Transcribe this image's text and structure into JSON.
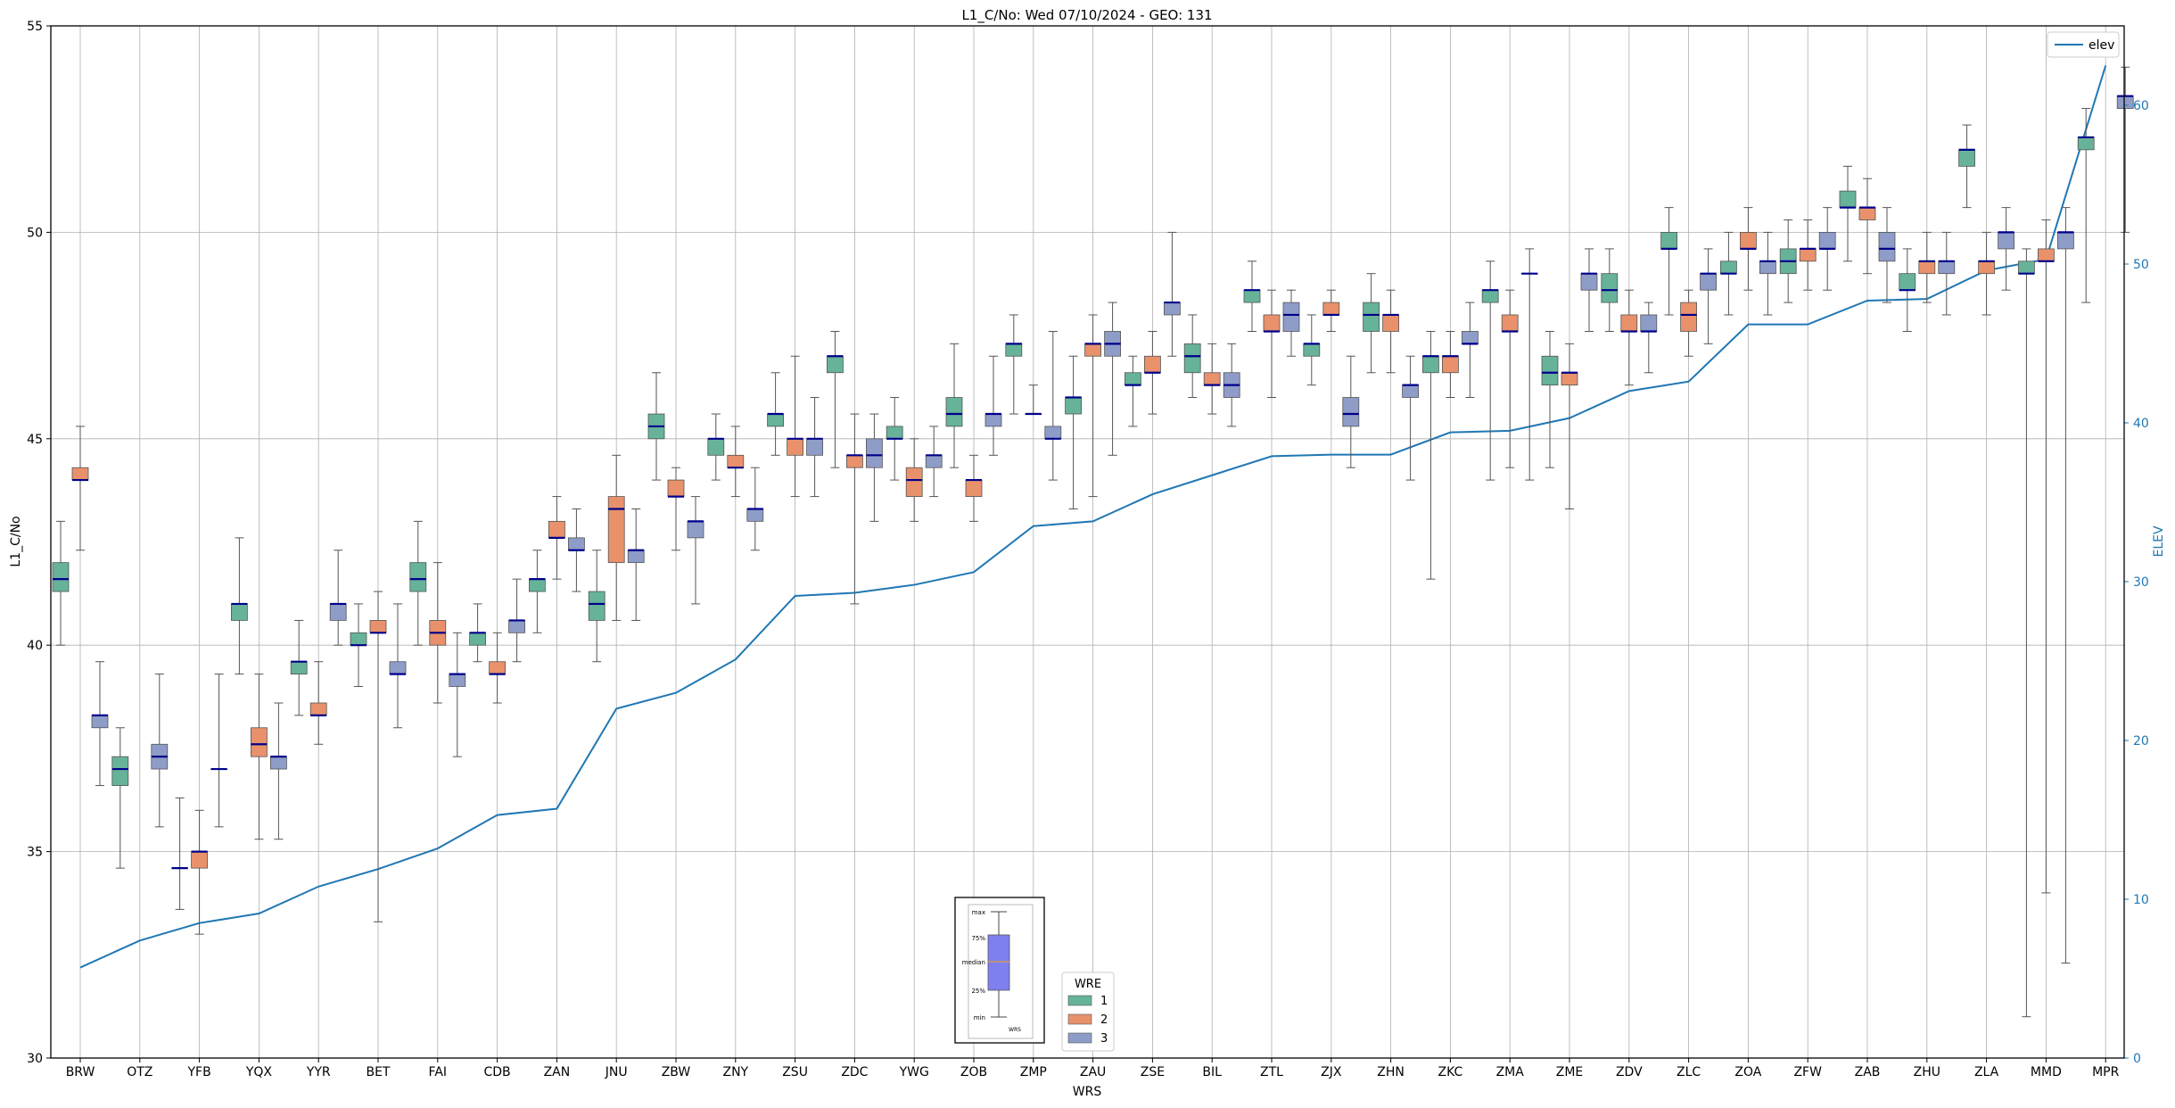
{
  "chart_data": {
    "type": "box",
    "title": "L1_C/No: Wed 07/10/2024 - GEO: 131",
    "xlabel": "WRS",
    "ylabel": "L1_C/No",
    "y2label": "ELEV",
    "ylim": [
      30,
      55
    ],
    "y2lim": [
      0,
      65
    ],
    "yticks": [
      30,
      35,
      40,
      45,
      50,
      55
    ],
    "y2ticks": [
      0,
      10,
      20,
      30,
      40,
      50,
      60
    ],
    "grid": true,
    "categories": [
      "BRW",
      "OTZ",
      "YFB",
      "YQX",
      "YYR",
      "BET",
      "FAI",
      "CDB",
      "ZAN",
      "JNU",
      "ZBW",
      "ZNY",
      "ZSU",
      "ZDC",
      "YWG",
      "ZOB",
      "ZMP",
      "ZAU",
      "ZSE",
      "BIL",
      "ZTL",
      "ZJX",
      "ZHN",
      "ZKC",
      "ZMA",
      "ZME",
      "ZDV",
      "ZLC",
      "ZOA",
      "ZFW",
      "ZAB",
      "ZHU",
      "ZLA",
      "MMD",
      "MPR"
    ],
    "wre_colors": {
      "1": "#66b39a",
      "2": "#e8916b",
      "3": "#8e9cc8"
    },
    "elev_color": "#1f77b4",
    "boxes": [
      {
        "wrs": "BRW",
        "wre": "1",
        "min": 40.0,
        "q1": 41.3,
        "median": 41.6,
        "q3": 42.0,
        "max": 43.0
      },
      {
        "wrs": "BRW",
        "wre": "2",
        "min": 42.3,
        "q1": 44.0,
        "median": 44.0,
        "q3": 44.3,
        "max": 45.3
      },
      {
        "wrs": "BRW",
        "wre": "3",
        "min": 36.6,
        "q1": 38.0,
        "median": 38.3,
        "q3": 38.3,
        "max": 39.6
      },
      {
        "wrs": "OTZ",
        "wre": "1",
        "min": 34.6,
        "q1": 36.6,
        "median": 37.0,
        "q3": 37.3,
        "max": 38.0
      },
      {
        "wrs": "OTZ",
        "wre": "3",
        "min": 35.6,
        "q1": 37.0,
        "median": 37.3,
        "q3": 37.6,
        "max": 39.3
      },
      {
        "wrs": "YFB",
        "wre": "1",
        "min": 33.6,
        "q1": 34.6,
        "median": 34.6,
        "q3": 34.6,
        "max": 36.3
      },
      {
        "wrs": "YFB",
        "wre": "2",
        "min": 33.0,
        "q1": 34.6,
        "median": 35.0,
        "q3": 35.0,
        "max": 36.0
      },
      {
        "wrs": "YFB",
        "wre": "3",
        "min": 35.6,
        "q1": 37.0,
        "median": 37.0,
        "q3": 37.0,
        "max": 39.3
      },
      {
        "wrs": "YQX",
        "wre": "1",
        "min": 39.3,
        "q1": 40.6,
        "median": 41.0,
        "q3": 41.0,
        "max": 42.6
      },
      {
        "wrs": "YQX",
        "wre": "2",
        "min": 35.3,
        "q1": 37.3,
        "median": 37.6,
        "q3": 38.0,
        "max": 39.3
      },
      {
        "wrs": "YQX",
        "wre": "3",
        "min": 35.3,
        "q1": 37.0,
        "median": 37.3,
        "q3": 37.3,
        "max": 38.6
      },
      {
        "wrs": "YYR",
        "wre": "1",
        "min": 38.3,
        "q1": 39.3,
        "median": 39.6,
        "q3": 39.6,
        "max": 40.6
      },
      {
        "wrs": "YYR",
        "wre": "2",
        "min": 37.6,
        "q1": 38.3,
        "median": 38.3,
        "q3": 38.6,
        "max": 39.6
      },
      {
        "wrs": "YYR",
        "wre": "3",
        "min": 40.0,
        "q1": 40.6,
        "median": 41.0,
        "q3": 41.0,
        "max": 42.3
      },
      {
        "wrs": "BET",
        "wre": "1",
        "min": 39.0,
        "q1": 40.0,
        "median": 40.0,
        "q3": 40.3,
        "max": 41.0
      },
      {
        "wrs": "BET",
        "wre": "2",
        "min": 33.3,
        "q1": 40.3,
        "median": 40.3,
        "q3": 40.6,
        "max": 41.3
      },
      {
        "wrs": "BET",
        "wre": "3",
        "min": 38.0,
        "q1": 39.3,
        "median": 39.3,
        "q3": 39.6,
        "max": 41.0
      },
      {
        "wrs": "FAI",
        "wre": "1",
        "min": 40.0,
        "q1": 41.3,
        "median": 41.6,
        "q3": 42.0,
        "max": 43.0
      },
      {
        "wrs": "FAI",
        "wre": "2",
        "min": 38.6,
        "q1": 40.0,
        "median": 40.3,
        "q3": 40.6,
        "max": 42.0
      },
      {
        "wrs": "FAI",
        "wre": "3",
        "min": 37.3,
        "q1": 39.0,
        "median": 39.3,
        "q3": 39.3,
        "max": 40.3
      },
      {
        "wrs": "CDB",
        "wre": "1",
        "min": 39.6,
        "q1": 40.0,
        "median": 40.3,
        "q3": 40.3,
        "max": 41.0
      },
      {
        "wrs": "CDB",
        "wre": "2",
        "min": 38.6,
        "q1": 39.3,
        "median": 39.3,
        "q3": 39.6,
        "max": 40.3
      },
      {
        "wrs": "CDB",
        "wre": "3",
        "min": 39.6,
        "q1": 40.3,
        "median": 40.6,
        "q3": 40.6,
        "max": 41.6
      },
      {
        "wrs": "ZAN",
        "wre": "1",
        "min": 40.3,
        "q1": 41.3,
        "median": 41.6,
        "q3": 41.6,
        "max": 42.3
      },
      {
        "wrs": "ZAN",
        "wre": "2",
        "min": 41.6,
        "q1": 42.6,
        "median": 42.6,
        "q3": 43.0,
        "max": 43.6
      },
      {
        "wrs": "ZAN",
        "wre": "3",
        "min": 41.3,
        "q1": 42.3,
        "median": 42.3,
        "q3": 42.6,
        "max": 43.3
      },
      {
        "wrs": "JNU",
        "wre": "1",
        "min": 39.6,
        "q1": 40.6,
        "median": 41.0,
        "q3": 41.3,
        "max": 42.3
      },
      {
        "wrs": "JNU",
        "wre": "2",
        "min": 40.6,
        "q1": 42.0,
        "median": 43.3,
        "q3": 43.6,
        "max": 44.6
      },
      {
        "wrs": "JNU",
        "wre": "3",
        "min": 40.6,
        "q1": 42.0,
        "median": 42.3,
        "q3": 42.3,
        "max": 43.3
      },
      {
        "wrs": "ZBW",
        "wre": "1",
        "min": 44.0,
        "q1": 45.0,
        "median": 45.3,
        "q3": 45.6,
        "max": 46.6
      },
      {
        "wrs": "ZBW",
        "wre": "2",
        "min": 42.3,
        "q1": 43.6,
        "median": 43.6,
        "q3": 44.0,
        "max": 44.3
      },
      {
        "wrs": "ZBW",
        "wre": "3",
        "min": 41.0,
        "q1": 42.6,
        "median": 43.0,
        "q3": 43.0,
        "max": 43.6
      },
      {
        "wrs": "ZNY",
        "wre": "1",
        "min": 44.0,
        "q1": 44.6,
        "median": 45.0,
        "q3": 45.0,
        "max": 45.6
      },
      {
        "wrs": "ZNY",
        "wre": "2",
        "min": 43.6,
        "q1": 44.3,
        "median": 44.3,
        "q3": 44.6,
        "max": 45.3
      },
      {
        "wrs": "ZNY",
        "wre": "3",
        "min": 42.3,
        "q1": 43.0,
        "median": 43.3,
        "q3": 43.3,
        "max": 44.3
      },
      {
        "wrs": "ZSU",
        "wre": "1",
        "min": 44.6,
        "q1": 45.3,
        "median": 45.6,
        "q3": 45.6,
        "max": 46.6
      },
      {
        "wrs": "ZSU",
        "wre": "2",
        "min": 43.6,
        "q1": 44.6,
        "median": 45.0,
        "q3": 45.0,
        "max": 47.0
      },
      {
        "wrs": "ZSU",
        "wre": "3",
        "min": 43.6,
        "q1": 44.6,
        "median": 45.0,
        "q3": 45.0,
        "max": 46.0
      },
      {
        "wrs": "ZDC",
        "wre": "1",
        "min": 44.3,
        "q1": 46.6,
        "median": 47.0,
        "q3": 47.0,
        "max": 47.6
      },
      {
        "wrs": "ZDC",
        "wre": "2",
        "min": 41.0,
        "q1": 44.3,
        "median": 44.6,
        "q3": 44.6,
        "max": 45.6
      },
      {
        "wrs": "ZDC",
        "wre": "3",
        "min": 43.0,
        "q1": 44.3,
        "median": 44.6,
        "q3": 45.0,
        "max": 45.6
      },
      {
        "wrs": "YWG",
        "wre": "1",
        "min": 44.0,
        "q1": 45.0,
        "median": 45.0,
        "q3": 45.3,
        "max": 46.0
      },
      {
        "wrs": "YWG",
        "wre": "2",
        "min": 43.0,
        "q1": 43.6,
        "median": 44.0,
        "q3": 44.3,
        "max": 45.0
      },
      {
        "wrs": "YWG",
        "wre": "3",
        "min": 43.6,
        "q1": 44.3,
        "median": 44.6,
        "q3": 44.6,
        "max": 45.3
      },
      {
        "wrs": "ZOB",
        "wre": "1",
        "min": 44.3,
        "q1": 45.3,
        "median": 45.6,
        "q3": 46.0,
        "max": 47.3
      },
      {
        "wrs": "ZOB",
        "wre": "2",
        "min": 43.0,
        "q1": 43.6,
        "median": 44.0,
        "q3": 44.0,
        "max": 44.6
      },
      {
        "wrs": "ZOB",
        "wre": "3",
        "min": 44.6,
        "q1": 45.3,
        "median": 45.6,
        "q3": 45.6,
        "max": 47.0
      },
      {
        "wrs": "ZMP",
        "wre": "1",
        "min": 45.6,
        "q1": 47.0,
        "median": 47.3,
        "q3": 47.3,
        "max": 48.0
      },
      {
        "wrs": "ZMP",
        "wre": "2",
        "min": 45.6,
        "q1": 45.6,
        "median": 45.6,
        "q3": 45.6,
        "max": 46.3
      },
      {
        "wrs": "ZMP",
        "wre": "3",
        "min": 44.0,
        "q1": 45.0,
        "median": 45.0,
        "q3": 45.3,
        "max": 47.6
      },
      {
        "wrs": "ZAU",
        "wre": "1",
        "min": 43.3,
        "q1": 45.6,
        "median": 46.0,
        "q3": 46.0,
        "max": 47.0
      },
      {
        "wrs": "ZAU",
        "wre": "2",
        "min": 43.6,
        "q1": 47.0,
        "median": 47.3,
        "q3": 47.3,
        "max": 48.0
      },
      {
        "wrs": "ZAU",
        "wre": "3",
        "min": 44.6,
        "q1": 47.0,
        "median": 47.3,
        "q3": 47.6,
        "max": 48.3
      },
      {
        "wrs": "ZSE",
        "wre": "1",
        "min": 45.3,
        "q1": 46.3,
        "median": 46.3,
        "q3": 46.6,
        "max": 47.0
      },
      {
        "wrs": "ZSE",
        "wre": "2",
        "min": 45.6,
        "q1": 46.6,
        "median": 46.6,
        "q3": 47.0,
        "max": 47.6
      },
      {
        "wrs": "ZSE",
        "wre": "3",
        "min": 47.0,
        "q1": 48.0,
        "median": 48.3,
        "q3": 48.3,
        "max": 50.0
      },
      {
        "wrs": "BIL",
        "wre": "1",
        "min": 46.0,
        "q1": 46.6,
        "median": 47.0,
        "q3": 47.3,
        "max": 48.0
      },
      {
        "wrs": "BIL",
        "wre": "2",
        "min": 45.6,
        "q1": 46.3,
        "median": 46.3,
        "q3": 46.6,
        "max": 47.3
      },
      {
        "wrs": "BIL",
        "wre": "3",
        "min": 45.3,
        "q1": 46.0,
        "median": 46.3,
        "q3": 46.6,
        "max": 47.3
      },
      {
        "wrs": "ZTL",
        "wre": "1",
        "min": 47.6,
        "q1": 48.3,
        "median": 48.6,
        "q3": 48.6,
        "max": 49.3
      },
      {
        "wrs": "ZTL",
        "wre": "2",
        "min": 46.0,
        "q1": 47.6,
        "median": 47.6,
        "q3": 48.0,
        "max": 48.6
      },
      {
        "wrs": "ZTL",
        "wre": "3",
        "min": 47.0,
        "q1": 47.6,
        "median": 48.0,
        "q3": 48.3,
        "max": 48.6
      },
      {
        "wrs": "ZJX",
        "wre": "1",
        "min": 46.3,
        "q1": 47.0,
        "median": 47.3,
        "q3": 47.3,
        "max": 48.0
      },
      {
        "wrs": "ZJX",
        "wre": "2",
        "min": 47.6,
        "q1": 48.0,
        "median": 48.0,
        "q3": 48.3,
        "max": 48.6
      },
      {
        "wrs": "ZJX",
        "wre": "3",
        "min": 44.3,
        "q1": 45.3,
        "median": 45.6,
        "q3": 46.0,
        "max": 47.0
      },
      {
        "wrs": "ZHN",
        "wre": "1",
        "min": 46.6,
        "q1": 47.6,
        "median": 48.0,
        "q3": 48.3,
        "max": 49.0
      },
      {
        "wrs": "ZHN",
        "wre": "2",
        "min": 46.6,
        "q1": 47.6,
        "median": 48.0,
        "q3": 48.0,
        "max": 48.6
      },
      {
        "wrs": "ZHN",
        "wre": "3",
        "min": 44.0,
        "q1": 46.0,
        "median": 46.3,
        "q3": 46.3,
        "max": 47.0
      },
      {
        "wrs": "ZKC",
        "wre": "1",
        "min": 41.6,
        "q1": 46.6,
        "median": 47.0,
        "q3": 47.0,
        "max": 47.6
      },
      {
        "wrs": "ZKC",
        "wre": "2",
        "min": 46.0,
        "q1": 46.6,
        "median": 47.0,
        "q3": 47.0,
        "max": 47.6
      },
      {
        "wrs": "ZKC",
        "wre": "3",
        "min": 46.0,
        "q1": 47.3,
        "median": 47.3,
        "q3": 47.6,
        "max": 48.3
      },
      {
        "wrs": "ZMA",
        "wre": "1",
        "min": 44.0,
        "q1": 48.3,
        "median": 48.6,
        "q3": 48.6,
        "max": 49.3
      },
      {
        "wrs": "ZMA",
        "wre": "2",
        "min": 44.3,
        "q1": 47.6,
        "median": 47.6,
        "q3": 48.0,
        "max": 48.6
      },
      {
        "wrs": "ZMA",
        "wre": "3",
        "min": 44.0,
        "q1": 49.0,
        "median": 49.0,
        "q3": 49.0,
        "max": 49.6
      },
      {
        "wrs": "ZME",
        "wre": "1",
        "min": 44.3,
        "q1": 46.3,
        "median": 46.6,
        "q3": 47.0,
        "max": 47.6
      },
      {
        "wrs": "ZME",
        "wre": "2",
        "min": 43.3,
        "q1": 46.3,
        "median": 46.6,
        "q3": 46.6,
        "max": 47.3
      },
      {
        "wrs": "ZME",
        "wre": "3",
        "min": 47.6,
        "q1": 48.6,
        "median": 49.0,
        "q3": 49.0,
        "max": 49.6
      },
      {
        "wrs": "ZDV",
        "wre": "1",
        "min": 47.6,
        "q1": 48.3,
        "median": 48.6,
        "q3": 49.0,
        "max": 49.6
      },
      {
        "wrs": "ZDV",
        "wre": "2",
        "min": 46.3,
        "q1": 47.6,
        "median": 47.6,
        "q3": 48.0,
        "max": 48.6
      },
      {
        "wrs": "ZDV",
        "wre": "3",
        "min": 46.6,
        "q1": 47.6,
        "median": 47.6,
        "q3": 48.0,
        "max": 48.3
      },
      {
        "wrs": "ZLC",
        "wre": "1",
        "min": 48.0,
        "q1": 49.6,
        "median": 49.6,
        "q3": 50.0,
        "max": 50.6
      },
      {
        "wrs": "ZLC",
        "wre": "2",
        "min": 47.0,
        "q1": 47.6,
        "median": 48.0,
        "q3": 48.3,
        "max": 48.6
      },
      {
        "wrs": "ZLC",
        "wre": "3",
        "min": 47.3,
        "q1": 48.6,
        "median": 49.0,
        "q3": 49.0,
        "max": 49.6
      },
      {
        "wrs": "ZOA",
        "wre": "1",
        "min": 48.0,
        "q1": 49.0,
        "median": 49.0,
        "q3": 49.3,
        "max": 50.0
      },
      {
        "wrs": "ZOA",
        "wre": "2",
        "min": 48.6,
        "q1": 49.6,
        "median": 49.6,
        "q3": 50.0,
        "max": 50.6
      },
      {
        "wrs": "ZOA",
        "wre": "3",
        "min": 48.0,
        "q1": 49.0,
        "median": 49.3,
        "q3": 49.3,
        "max": 50.0
      },
      {
        "wrs": "ZFW",
        "wre": "1",
        "min": 48.3,
        "q1": 49.0,
        "median": 49.3,
        "q3": 49.6,
        "max": 50.3
      },
      {
        "wrs": "ZFW",
        "wre": "2",
        "min": 48.6,
        "q1": 49.3,
        "median": 49.6,
        "q3": 49.6,
        "max": 50.3
      },
      {
        "wrs": "ZFW",
        "wre": "3",
        "min": 48.6,
        "q1": 49.6,
        "median": 49.6,
        "q3": 50.0,
        "max": 50.6
      },
      {
        "wrs": "ZAB",
        "wre": "1",
        "min": 49.3,
        "q1": 50.6,
        "median": 50.6,
        "q3": 51.0,
        "max": 51.6
      },
      {
        "wrs": "ZAB",
        "wre": "2",
        "min": 49.0,
        "q1": 50.3,
        "median": 50.6,
        "q3": 50.6,
        "max": 51.3
      },
      {
        "wrs": "ZAB",
        "wre": "3",
        "min": 48.3,
        "q1": 49.3,
        "median": 49.6,
        "q3": 50.0,
        "max": 50.6
      },
      {
        "wrs": "ZHU",
        "wre": "1",
        "min": 47.6,
        "q1": 48.6,
        "median": 48.6,
        "q3": 49.0,
        "max": 49.6
      },
      {
        "wrs": "ZHU",
        "wre": "2",
        "min": 48.3,
        "q1": 49.0,
        "median": 49.3,
        "q3": 49.3,
        "max": 50.0
      },
      {
        "wrs": "ZHU",
        "wre": "3",
        "min": 48.0,
        "q1": 49.0,
        "median": 49.3,
        "q3": 49.3,
        "max": 50.0
      },
      {
        "wrs": "ZLA",
        "wre": "1",
        "min": 50.6,
        "q1": 51.6,
        "median": 52.0,
        "q3": 52.0,
        "max": 52.6
      },
      {
        "wrs": "ZLA",
        "wre": "2",
        "min": 48.0,
        "q1": 49.0,
        "median": 49.3,
        "q3": 49.3,
        "max": 50.0
      },
      {
        "wrs": "ZLA",
        "wre": "3",
        "min": 48.6,
        "q1": 49.6,
        "median": 50.0,
        "q3": 50.0,
        "max": 50.6
      },
      {
        "wrs": "MMD",
        "wre": "1",
        "min": 31.0,
        "q1": 49.0,
        "median": 49.0,
        "q3": 49.3,
        "max": 49.6
      },
      {
        "wrs": "MMD",
        "wre": "2",
        "min": 34.0,
        "q1": 49.3,
        "median": 49.3,
        "q3": 49.6,
        "max": 50.3
      },
      {
        "wrs": "MMD",
        "wre": "3",
        "min": 32.3,
        "q1": 49.6,
        "median": 50.0,
        "q3": 50.0,
        "max": 50.6
      },
      {
        "wrs": "MPR",
        "wre": "1",
        "min": 48.3,
        "q1": 52.0,
        "median": 52.3,
        "q3": 52.3,
        "max": 53.0
      },
      {
        "wrs": "MPR",
        "wre": "3",
        "min": 50.0,
        "q1": 53.0,
        "median": 53.3,
        "q3": 53.3,
        "max": 54.0
      }
    ],
    "elev": [
      5.7,
      7.4,
      8.5,
      9.1,
      10.8,
      11.9,
      13.2,
      15.3,
      15.7,
      22.0,
      23.0,
      25.1,
      29.1,
      29.3,
      29.8,
      30.6,
      33.5,
      33.8,
      35.5,
      36.7,
      37.9,
      38.0,
      38.0,
      39.4,
      39.5,
      40.3,
      42.0,
      42.6,
      46.2,
      46.2,
      47.7,
      47.8,
      49.6,
      50.3,
      62.5
    ],
    "legend_elev": "elev",
    "legend_wre_title": "WRE",
    "legend_wre": [
      "1",
      "2",
      "3"
    ],
    "key_labels": [
      "max",
      "75%",
      "median",
      "25%",
      "min",
      "WRS"
    ]
  }
}
